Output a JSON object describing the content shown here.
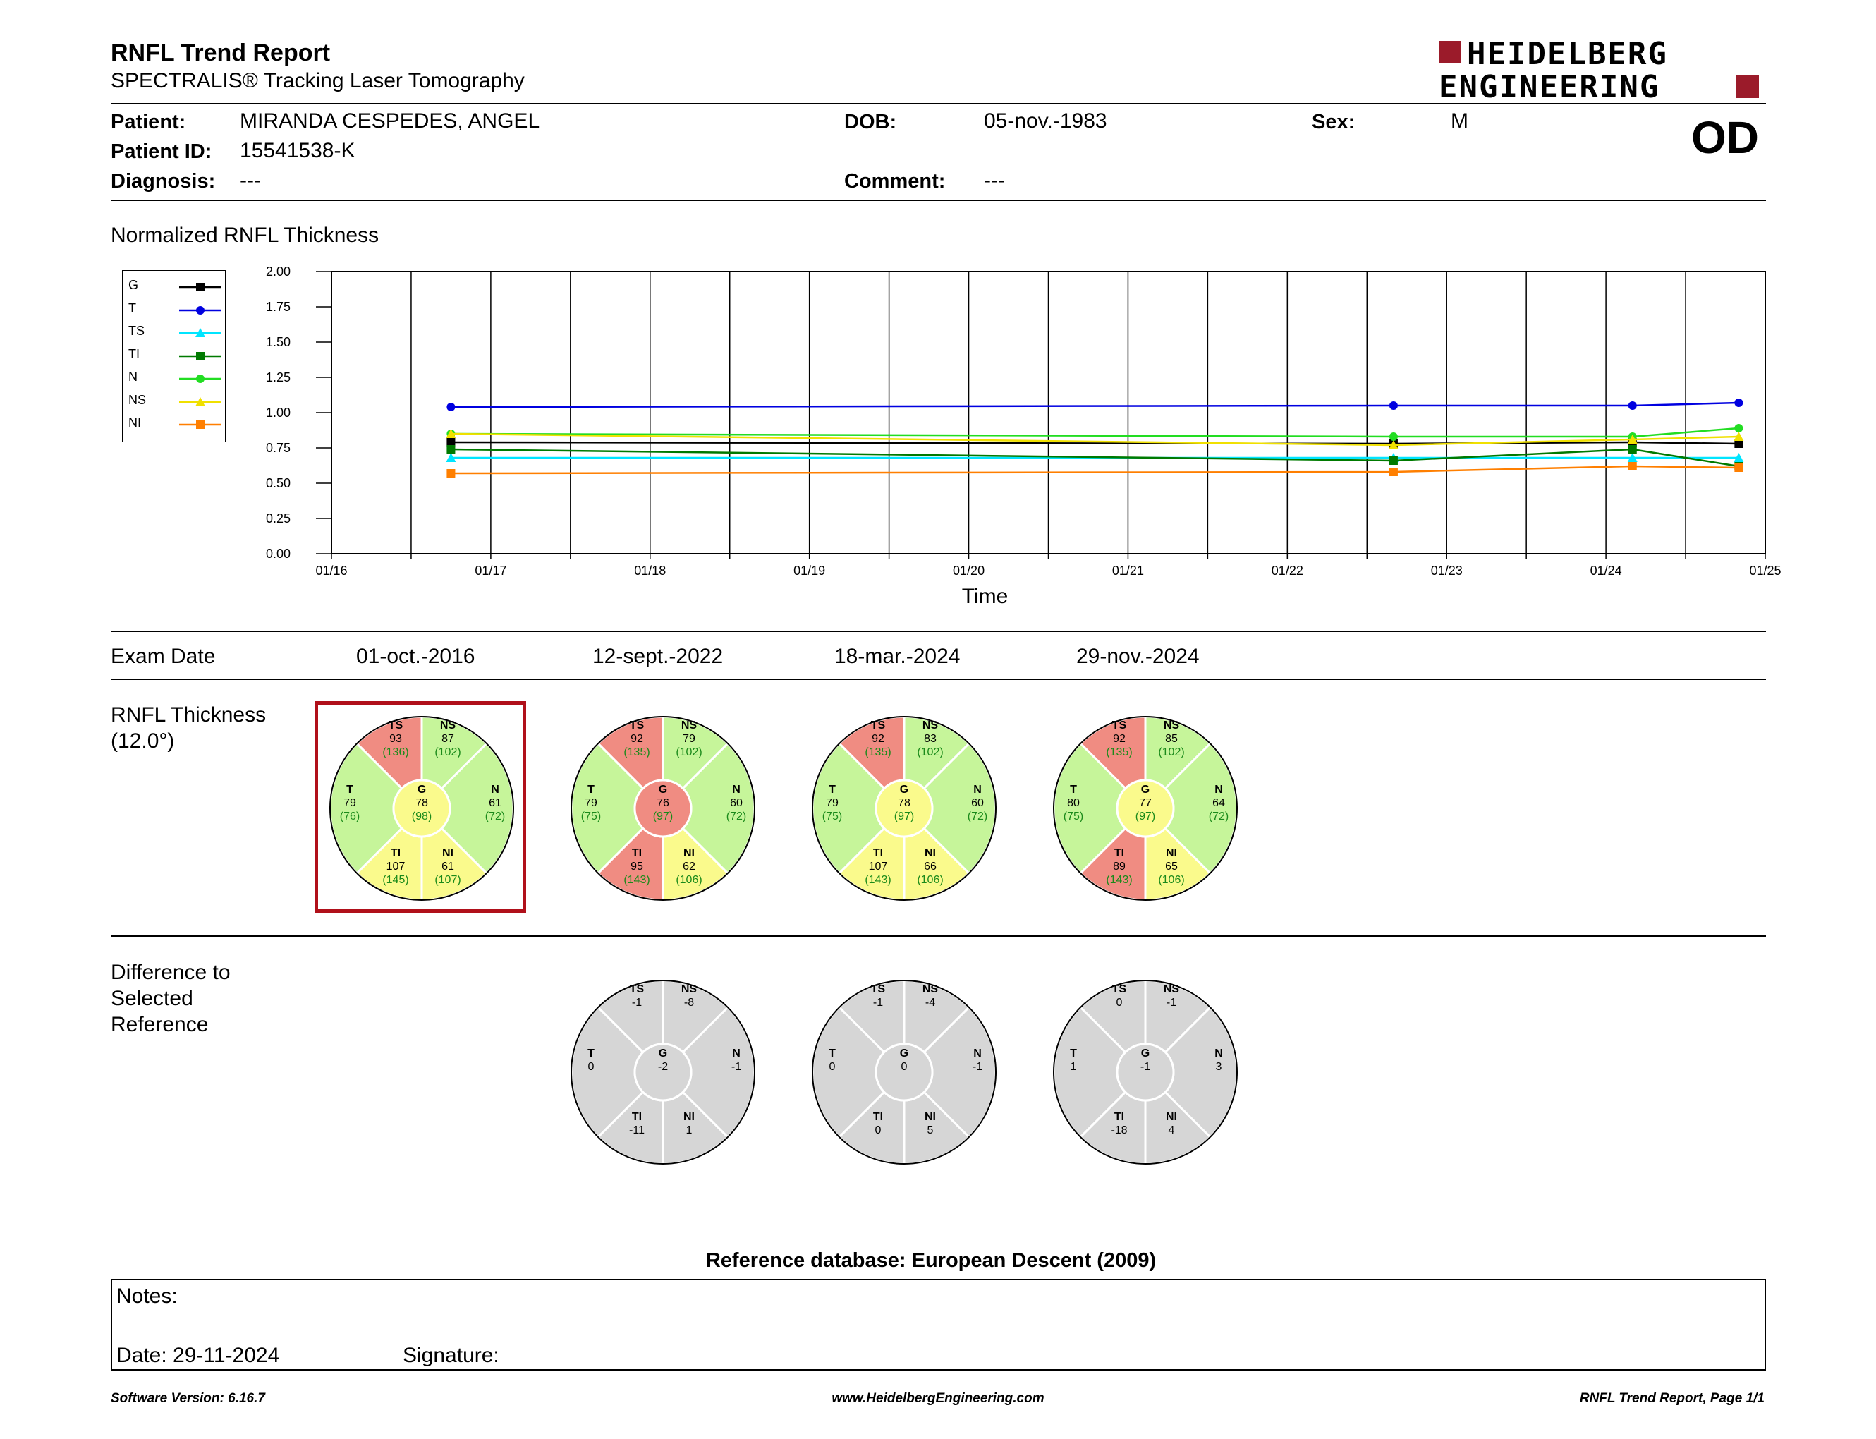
{
  "header": {
    "title": "RNFL Trend Report",
    "subtitle": "SPECTRALIS® Tracking Laser Tomography",
    "logo_line1": "HEIDELBERG",
    "logo_line2": "ENGINEERING",
    "eye": "OD"
  },
  "patient": {
    "name_label": "Patient:",
    "name": "MIRANDA CESPEDES, ANGEL",
    "id_label": "Patient ID:",
    "id": "15541538-K",
    "diag_label": "Diagnosis:",
    "diagnosis": "---",
    "dob_label": "DOB:",
    "dob": "05-nov.-1983",
    "comment_label": "Comment:",
    "comment": "---",
    "sex_label": "Sex:",
    "sex": "M"
  },
  "chart_section_title": "Normalized RNFL Thickness",
  "chart_data": {
    "type": "line",
    "xlabel": "Time",
    "ylabel": "",
    "ylim": [
      0,
      2.0
    ],
    "yticks": [
      "0.00",
      "0.25",
      "0.50",
      "0.75",
      "1.00",
      "1.25",
      "1.50",
      "1.75",
      "2.00"
    ],
    "xticks": [
      "01/16",
      "01/17",
      "01/18",
      "01/19",
      "01/20",
      "01/21",
      "01/22",
      "01/23",
      "01/24",
      "01/25"
    ],
    "x": [
      "2016-10",
      "2022-09",
      "2024-03",
      "2024-11"
    ],
    "series": [
      {
        "name": "G",
        "color": "#000000",
        "marker": "square",
        "values": [
          0.79,
          0.78,
          0.79,
          0.78
        ]
      },
      {
        "name": "T",
        "color": "#0000e0",
        "marker": "circle",
        "values": [
          1.04,
          1.05,
          1.05,
          1.07
        ]
      },
      {
        "name": "TS",
        "color": "#00e5ff",
        "marker": "triangle",
        "values": [
          0.68,
          0.68,
          0.68,
          0.68
        ]
      },
      {
        "name": "TI",
        "color": "#007a00",
        "marker": "square",
        "values": [
          0.74,
          0.66,
          0.74,
          0.62
        ]
      },
      {
        "name": "N",
        "color": "#22dd22",
        "marker": "circle",
        "values": [
          0.85,
          0.83,
          0.83,
          0.89
        ]
      },
      {
        "name": "NS",
        "color": "#f0e000",
        "marker": "triangle",
        "values": [
          0.85,
          0.77,
          0.81,
          0.83
        ]
      },
      {
        "name": "NI",
        "color": "#ff7f00",
        "marker": "square",
        "values": [
          0.57,
          0.58,
          0.62,
          0.61
        ]
      }
    ]
  },
  "exam": {
    "label": "Exam Date",
    "dates": [
      "01-oct.-2016",
      "12-sept.-2022",
      "18-mar.-2024",
      "29-nov.-2024"
    ]
  },
  "thickness": {
    "label1": "RNFL Thickness",
    "label2": "(12.0°)",
    "wheels": [
      {
        "TS": [
          "93",
          "(136)"
        ],
        "NS": [
          "87",
          "(102)"
        ],
        "T": [
          "79",
          "(76)"
        ],
        "G": [
          "78",
          "(98)"
        ],
        "N": [
          "61",
          "(72)"
        ],
        "TI": [
          "107",
          "(145)"
        ],
        "NI": [
          "61",
          "(107)"
        ]
      },
      {
        "TS": [
          "92",
          "(135)"
        ],
        "NS": [
          "79",
          "(102)"
        ],
        "T": [
          "79",
          "(75)"
        ],
        "G": [
          "76",
          "(97)"
        ],
        "N": [
          "60",
          "(72)"
        ],
        "TI": [
          "95",
          "(143)"
        ],
        "NI": [
          "62",
          "(106)"
        ]
      },
      {
        "TS": [
          "92",
          "(135)"
        ],
        "NS": [
          "83",
          "(102)"
        ],
        "T": [
          "79",
          "(75)"
        ],
        "G": [
          "78",
          "(97)"
        ],
        "N": [
          "60",
          "(72)"
        ],
        "TI": [
          "107",
          "(143)"
        ],
        "NI": [
          "66",
          "(106)"
        ]
      },
      {
        "TS": [
          "92",
          "(135)"
        ],
        "NS": [
          "85",
          "(102)"
        ],
        "T": [
          "80",
          "(75)"
        ],
        "G": [
          "77",
          "(97)"
        ],
        "N": [
          "64",
          "(72)"
        ],
        "TI": [
          "89",
          "(143)"
        ],
        "NI": [
          "65",
          "(106)"
        ]
      }
    ],
    "colors": [
      {
        "TS": "#f08c82",
        "NS": "#c6f59a",
        "T": "#c6f59a",
        "G": "#fafa8c",
        "N": "#c6f59a",
        "TI": "#fafa8c",
        "NI": "#fafa8c"
      },
      {
        "TS": "#f08c82",
        "NS": "#c6f59a",
        "T": "#c6f59a",
        "G": "#f08c82",
        "N": "#c6f59a",
        "TI": "#f08c82",
        "NI": "#fafa8c"
      },
      {
        "TS": "#f08c82",
        "NS": "#c6f59a",
        "T": "#c6f59a",
        "G": "#fafa8c",
        "N": "#c6f59a",
        "TI": "#fafa8c",
        "NI": "#fafa8c"
      },
      {
        "TS": "#f08c82",
        "NS": "#c6f59a",
        "T": "#c6f59a",
        "G": "#fafa8c",
        "N": "#c6f59a",
        "TI": "#f08c82",
        "NI": "#fafa8c"
      }
    ]
  },
  "difference": {
    "label1": "Difference to",
    "label2": "Selected",
    "label3": "Reference",
    "wheels": [
      {
        "TS": "-1",
        "NS": "-8",
        "T": "0",
        "G": "-2",
        "N": "-1",
        "TI": "-11",
        "NI": "1"
      },
      {
        "TS": "-1",
        "NS": "-4",
        "T": "0",
        "G": "0",
        "N": "-1",
        "TI": "0",
        "NI": "5"
      },
      {
        "TS": "0",
        "NS": "-1",
        "T": "1",
        "G": "-1",
        "N": "3",
        "TI": "-18",
        "NI": "4"
      }
    ]
  },
  "reference_db": "Reference database: European Descent (2009)",
  "notes": {
    "label": "Notes:",
    "date": "Date: 29-11-2024",
    "signature": "Signature:"
  },
  "footer": {
    "left": "Software Version: 6.16.7",
    "center": "www.HeidelbergEngineering.com",
    "right": "RNFL Trend Report, Page 1/1"
  }
}
